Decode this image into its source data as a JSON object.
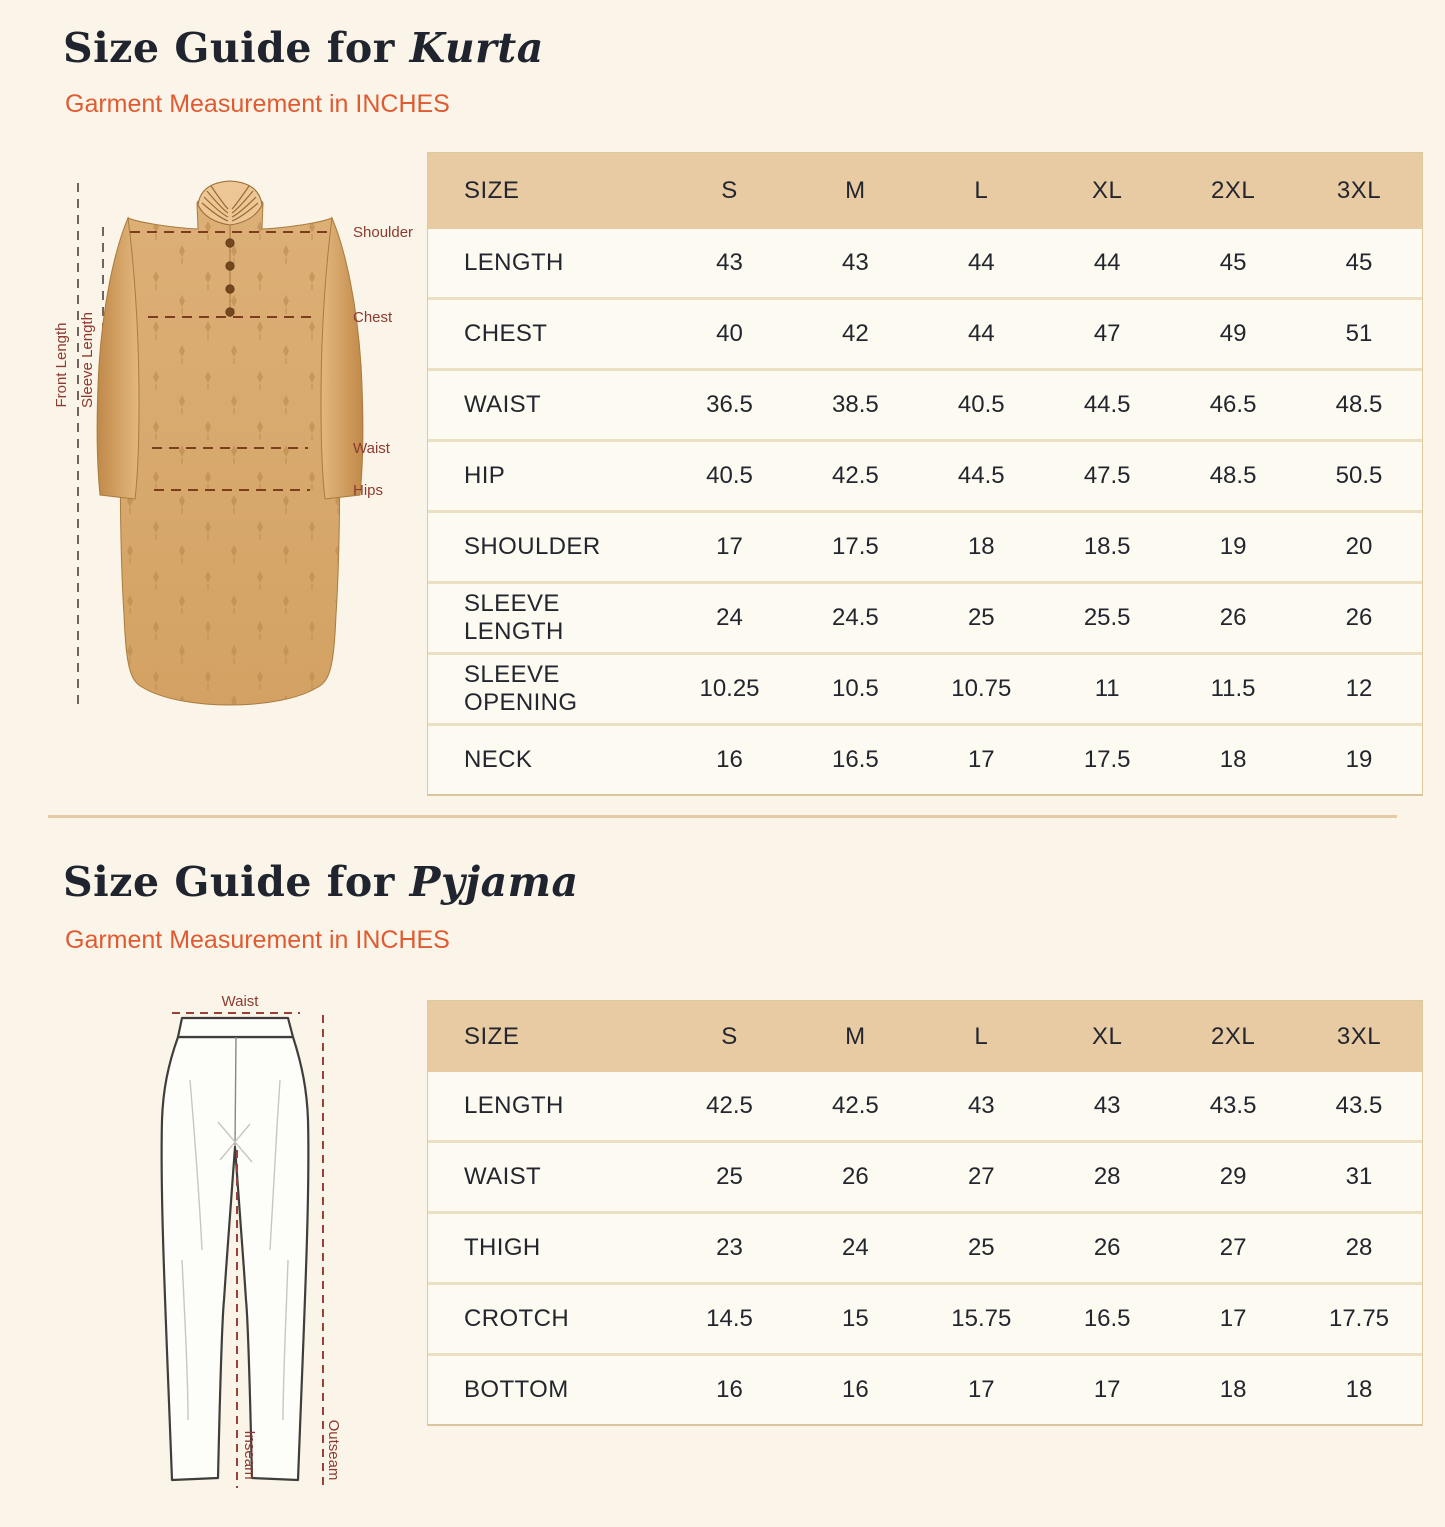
{
  "colors": {
    "page_bg": "#faf5e8",
    "accent_orange": "#e05a32",
    "diagram_label_maroon": "#8e3a30",
    "table_header_tan": "#e9cba3",
    "title_ink": "#20242e",
    "kurta_body_tan": "#d9a96d"
  },
  "kurta": {
    "title_prefix": "Size Guide for ",
    "title_name": "Kurta",
    "subtitle": "Garment Measurement in INCHES",
    "diagram": {
      "front_length": "Front Length",
      "sleeve_length": "Sleeve Length",
      "shoulder": "Shoulder",
      "chest": "Chest",
      "waist": "Waist",
      "hips": "Hips"
    },
    "table": {
      "header": [
        "SIZE",
        "S",
        "M",
        "L",
        "XL",
        "2XL",
        "3XL"
      ],
      "rows": [
        {
          "label": "LENGTH",
          "values": [
            "43",
            "43",
            "44",
            "44",
            "45",
            "45"
          ]
        },
        {
          "label": "CHEST",
          "values": [
            "40",
            "42",
            "44",
            "47",
            "49",
            "51"
          ]
        },
        {
          "label": "WAIST",
          "values": [
            "36.5",
            "38.5",
            "40.5",
            "44.5",
            "46.5",
            "48.5"
          ]
        },
        {
          "label": "HIP",
          "values": [
            "40.5",
            "42.5",
            "44.5",
            "47.5",
            "48.5",
            "50.5"
          ]
        },
        {
          "label": "SHOULDER",
          "values": [
            "17",
            "17.5",
            "18",
            "18.5",
            "19",
            "20"
          ]
        },
        {
          "label": "SLEEVE LENGTH",
          "values": [
            "24",
            "24.5",
            "25",
            "25.5",
            "26",
            "26"
          ]
        },
        {
          "label": "SLEEVE OPENING",
          "values": [
            "10.25",
            "10.5",
            "10.75",
            "11",
            "11.5",
            "12"
          ]
        },
        {
          "label": "NECK",
          "values": [
            "16",
            "16.5",
            "17",
            "17.5",
            "18",
            "19"
          ]
        }
      ]
    }
  },
  "pyjama": {
    "title_prefix": "Size Guide for ",
    "title_name": "Pyjama",
    "subtitle": "Garment Measurement in INCHES",
    "diagram": {
      "waist": "Waist",
      "inseam": "Inseam",
      "outseam": "Outseam"
    },
    "table": {
      "header": [
        "SIZE",
        "S",
        "M",
        "L",
        "XL",
        "2XL",
        "3XL"
      ],
      "rows": [
        {
          "label": "LENGTH",
          "values": [
            "42.5",
            "42.5",
            "43",
            "43",
            "43.5",
            "43.5"
          ]
        },
        {
          "label": "WAIST",
          "values": [
            "25",
            "26",
            "27",
            "28",
            "29",
            "31"
          ]
        },
        {
          "label": "THIGH",
          "values": [
            "23",
            "24",
            "25",
            "26",
            "27",
            "28"
          ]
        },
        {
          "label": "CROTCH",
          "values": [
            "14.5",
            "15",
            "15.75",
            "16.5",
            "17",
            "17.75"
          ]
        },
        {
          "label": "BOTTOM",
          "values": [
            "16",
            "16",
            "17",
            "17",
            "18",
            "18"
          ]
        }
      ]
    }
  }
}
